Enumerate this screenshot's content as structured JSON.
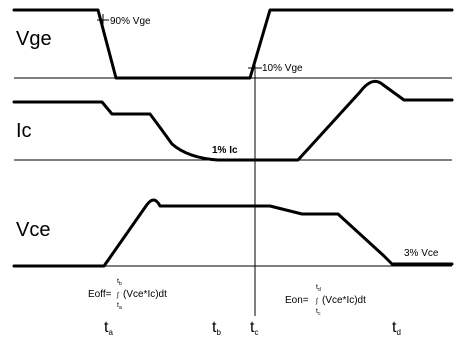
{
  "signals": {
    "vge": "Vge",
    "ic": "Ic",
    "vce": "Vce"
  },
  "annotations": {
    "vge_90": "90% Vge",
    "vge_10": "10% Vge",
    "ic_1": "1% Ic",
    "vce_3": "3% Vce"
  },
  "formulas": {
    "eoff": "Eoff=",
    "eoff_integrand": "(Vce*Ic)dt",
    "eoff_upper": "t",
    "eoff_upper_sub": "b",
    "eoff_lower": "t",
    "eoff_lower_sub": "a",
    "eon": "Eon=",
    "eon_integrand": "(Vce*Ic)dt",
    "eon_upper": "t",
    "eon_upper_sub": "d",
    "eon_lower": "t",
    "eon_lower_sub": "c"
  },
  "time_markers": [
    {
      "base": "t",
      "sub": "a"
    },
    {
      "base": "t",
      "sub": "b"
    },
    {
      "base": "t",
      "sub": "c"
    },
    {
      "base": "t",
      "sub": "d"
    }
  ]
}
